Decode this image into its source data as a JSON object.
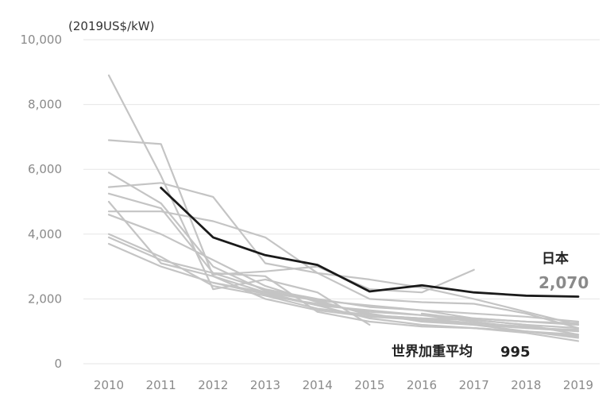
{
  "chart_data": {
    "type": "line",
    "unit_label": "(2019US$/kW)",
    "x": [
      "2010",
      "2011",
      "2012",
      "2013",
      "2014",
      "2015",
      "2016",
      "2017",
      "2018",
      "2019"
    ],
    "y_ticks": [
      "0",
      "2,000",
      "4,000",
      "6,000",
      "8,000",
      "10,000"
    ],
    "ylim": [
      0,
      10000
    ],
    "grid": true,
    "colors": {
      "highlight": "#1a1a1a",
      "background_series": "#c4c4c4",
      "grid": "#e6e6e6"
    },
    "highlight_series": {
      "name": "日本",
      "values": [
        null,
        5430,
        3900,
        3350,
        3050,
        2230,
        2420,
        2200,
        2100,
        2070
      ]
    },
    "background_series": [
      {
        "values": [
          8900,
          5800,
          2300,
          2600,
          2200,
          1200,
          null,
          null,
          null,
          null
        ]
      },
      {
        "values": [
          6900,
          6780,
          2700,
          2200,
          1800,
          1650,
          1500,
          1300,
          1100,
          1000
        ]
      },
      {
        "values": [
          5900,
          4950,
          3000,
          2250,
          1950,
          1500,
          1400,
          1350,
          1200,
          1100
        ]
      },
      {
        "values": [
          5450,
          5580,
          5150,
          3100,
          2800,
          2600,
          2350,
          2000,
          1600,
          1200
        ]
      },
      {
        "values": [
          5250,
          4800,
          2800,
          2300,
          2000,
          1750,
          1650,
          1550,
          1450,
          1300
        ]
      },
      {
        "values": [
          5000,
          3100,
          2700,
          2000,
          1650,
          1450,
          1350,
          1200,
          1100,
          1050
        ]
      },
      {
        "values": [
          4700,
          4700,
          4400,
          3900,
          2800,
          2000,
          1900,
          1850,
          1550,
          1100
        ]
      },
      {
        "values": [
          4600,
          4000,
          3200,
          2400,
          1900,
          1550,
          1300,
          1200,
          1000,
          900
        ]
      },
      {
        "values": [
          4000,
          3300,
          2400,
          2100,
          1850,
          1600,
          1500,
          1400,
          1300,
          1200
        ]
      },
      {
        "values": [
          3900,
          3200,
          2800,
          2700,
          1600,
          1300,
          1150,
          1100,
          1000,
          850
        ]
      },
      {
        "values": [
          3700,
          3000,
          2500,
          2150,
          1800,
          1400,
          1200,
          1100,
          950,
          700
        ]
      },
      {
        "values": [
          null,
          null,
          2750,
          2850,
          3000,
          2300,
          2200,
          2900,
          null,
          null
        ]
      },
      {
        "values": [
          null,
          null,
          2500,
          2200,
          1950,
          1800,
          1650,
          1400,
          1300,
          1250
        ]
      },
      {
        "values": [
          null,
          null,
          null,
          2100,
          1700,
          1500,
          1400,
          1250,
          1150,
          1000
        ]
      },
      {
        "values": [
          null,
          null,
          null,
          null,
          null,
          null,
          1550,
          1350,
          1200,
          900
        ]
      },
      {
        "values": [
          null,
          null,
          null,
          null,
          null,
          null,
          null,
          1100,
          1000,
          800
        ]
      }
    ],
    "annotations": {
      "japan_label": "日本",
      "japan_value": "2,070",
      "world_label": "世界加重平均",
      "world_value": "995"
    }
  }
}
